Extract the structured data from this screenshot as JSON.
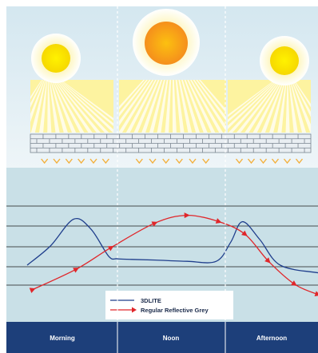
{
  "colors": {
    "sky_top": "#d6e8f1",
    "sky_bottom": "#e9f3f7",
    "chart_bg": "#c9e0e7",
    "footer_bg": "#1d3f7a",
    "line_3dlite": "#1f3e8c",
    "line_reflective": "#e0262a",
    "sun_core": "#f7a21c",
    "sun_glow": "#fdf1a6",
    "chevron": "#f3b03c"
  },
  "panels": [
    {
      "id": "morning"
    },
    {
      "id": "noon"
    },
    {
      "id": "afternoon"
    }
  ],
  "chart_data": {
    "type": "line",
    "title": "",
    "xlabel": "",
    "ylabel": "",
    "ylim": [
      0,
      9
    ],
    "xlim": [
      0,
      1
    ],
    "categories": [
      "Morning",
      "Noon",
      "Afternoon"
    ],
    "series": [
      {
        "name": "3DLITE",
        "x": [
          0.0,
          0.08,
          0.16,
          0.22,
          0.28,
          0.31,
          0.36,
          0.44,
          0.55,
          0.65,
          0.7,
          0.74,
          0.8,
          0.87,
          1.0
        ],
        "y": [
          3.0,
          4.5,
          6.6,
          5.8,
          3.7,
          3.5,
          3.45,
          3.4,
          3.3,
          3.3,
          4.8,
          6.4,
          5.0,
          3.0,
          2.4
        ]
      },
      {
        "name": "Regular Reflective Grey",
        "x": [
          0.02,
          0.17,
          0.29,
          0.44,
          0.55,
          0.66,
          0.75,
          0.83,
          0.92,
          1.0
        ],
        "y": [
          1.1,
          2.7,
          4.4,
          6.3,
          6.9,
          6.4,
          5.4,
          3.3,
          1.5,
          0.7
        ]
      }
    ]
  },
  "legend": {
    "items": [
      {
        "label": "3DLITE"
      },
      {
        "label": "Regular Reflective Grey"
      }
    ]
  },
  "footer": {
    "labels": [
      "Morning",
      "Noon",
      "Afternoon"
    ]
  }
}
